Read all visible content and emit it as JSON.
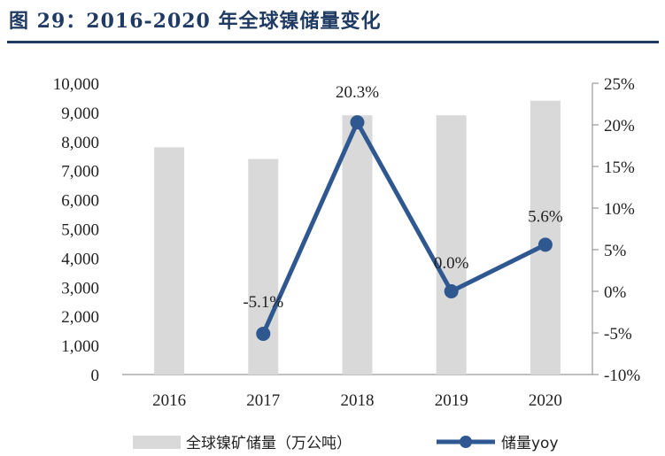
{
  "figure": {
    "title": "图 29：2016-2020 年全球镍储量变化"
  },
  "chart_data": {
    "type": "bar",
    "categories": [
      "2016",
      "2017",
      "2018",
      "2019",
      "2020"
    ],
    "series": [
      {
        "name": "全球镍矿储量（万公吨）",
        "type": "bar",
        "axis": "left",
        "color": "#d9d9d9",
        "values": [
          7800,
          7400,
          8900,
          8900,
          9400
        ]
      },
      {
        "name": "储量yoy",
        "type": "line",
        "axis": "right",
        "color": "#2f5890",
        "values": [
          null,
          -5.1,
          20.3,
          0.0,
          5.6
        ],
        "labels": [
          "",
          "-5.1%",
          "20.3%",
          "0.0%",
          "5.6%"
        ]
      }
    ],
    "y_left": {
      "min": 0,
      "max": 10000,
      "ticks": [
        "0",
        "1,000",
        "2,000",
        "3,000",
        "4,000",
        "5,000",
        "6,000",
        "7,000",
        "8,000",
        "9,000",
        "10,000"
      ]
    },
    "y_right": {
      "min": -10,
      "max": 25,
      "ticks": [
        "-10%",
        "-5%",
        "0%",
        "5%",
        "10%",
        "15%",
        "20%",
        "25%"
      ]
    },
    "grid": false,
    "legend_position": "bottom"
  }
}
